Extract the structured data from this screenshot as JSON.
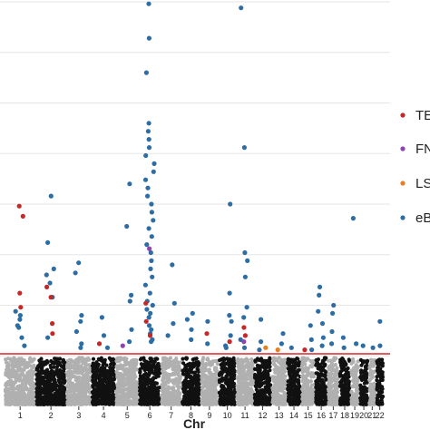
{
  "chart_data": {
    "type": "scatter",
    "title": "",
    "xlabel": "Chr",
    "ylabel": "",
    "ylim": [
      0,
      40
    ],
    "grid": "horizontal",
    "legend_position": "right",
    "categories": [
      "1",
      "2",
      "3",
      "4",
      "5",
      "6",
      "7",
      "8",
      "9",
      "10",
      "11",
      "12",
      "13",
      "14",
      "15",
      "16",
      "17",
      "18",
      "19",
      "20",
      "21",
      "22"
    ],
    "chromosome_lengths_mb": [
      249,
      242,
      198,
      190,
      181,
      171,
      159,
      145,
      138,
      134,
      135,
      133,
      114,
      107,
      102,
      90,
      83,
      80,
      59,
      64,
      47,
      51
    ],
    "threshold": {
      "value": 5.2,
      "color": "#d62728"
    },
    "background_colors": [
      "#b0b0b0",
      "#111111"
    ],
    "series": [
      {
        "name": "TE",
        "color": "#c62828",
        "points": [
          {
            "chr": 1,
            "y": 19.8
          },
          {
            "chr": 1,
            "y": 18.8
          },
          {
            "chr": 1,
            "y": 11.2
          },
          {
            "chr": 1,
            "y": 9.8
          },
          {
            "chr": 2,
            "y": 11.8
          },
          {
            "chr": 2,
            "y": 10.8
          },
          {
            "chr": 2,
            "y": 8.2
          },
          {
            "chr": 2,
            "y": 7.2
          },
          {
            "chr": 4,
            "y": 6.2
          },
          {
            "chr": 6,
            "y": 10.2
          },
          {
            "chr": 6,
            "y": 8.4
          },
          {
            "chr": 6,
            "y": 7.0
          },
          {
            "chr": 9,
            "y": 7.2
          },
          {
            "chr": 10,
            "y": 6.4
          },
          {
            "chr": 11,
            "y": 7.8
          },
          {
            "chr": 11,
            "y": 7.0
          },
          {
            "chr": 15,
            "y": 5.6
          }
        ]
      },
      {
        "name": "FN",
        "color": "#8e44ad",
        "points": [
          {
            "chr": 5,
            "y": 6.0
          },
          {
            "chr": 6,
            "y": 15.6
          },
          {
            "chr": 11,
            "y": 6.4
          }
        ]
      },
      {
        "name": "LS",
        "color": "#e67e22",
        "points": [
          {
            "chr": 12,
            "y": 5.8
          },
          {
            "chr": 13,
            "y": 5.6
          }
        ]
      },
      {
        "name": "eB",
        "color": "#2e6da4",
        "points": [
          {
            "chr": 1,
            "y": 9.4
          },
          {
            "chr": 1,
            "y": 8.6
          },
          {
            "chr": 1,
            "y": 7.8
          },
          {
            "chr": 1,
            "y": 6.8
          },
          {
            "chr": 1,
            "y": 6.0
          },
          {
            "chr": 1,
            "y": 9.0
          },
          {
            "chr": 1,
            "y": 8.0
          },
          {
            "chr": 2,
            "y": 16.2
          },
          {
            "chr": 2,
            "y": 13.6
          },
          {
            "chr": 2,
            "y": 13.0
          },
          {
            "chr": 2,
            "y": 12.2
          },
          {
            "chr": 2,
            "y": 10.8
          },
          {
            "chr": 2,
            "y": 20.8
          },
          {
            "chr": 2,
            "y": 6.8
          },
          {
            "chr": 3,
            "y": 14.2
          },
          {
            "chr": 3,
            "y": 13.2
          },
          {
            "chr": 3,
            "y": 9.0
          },
          {
            "chr": 3,
            "y": 8.4
          },
          {
            "chr": 3,
            "y": 7.4
          },
          {
            "chr": 3,
            "y": 6.2
          },
          {
            "chr": 3,
            "y": 5.8
          },
          {
            "chr": 4,
            "y": 8.8
          },
          {
            "chr": 4,
            "y": 7.0
          },
          {
            "chr": 4,
            "y": 5.8
          },
          {
            "chr": 5,
            "y": 22.0
          },
          {
            "chr": 5,
            "y": 17.8
          },
          {
            "chr": 5,
            "y": 10.4
          },
          {
            "chr": 5,
            "y": 7.6
          },
          {
            "chr": 5,
            "y": 11.0
          },
          {
            "chr": 5,
            "y": 6.4
          },
          {
            "chr": 6,
            "y": 39.8
          },
          {
            "chr": 6,
            "y": 36.4
          },
          {
            "chr": 6,
            "y": 33.0
          },
          {
            "chr": 6,
            "y": 28.0
          },
          {
            "chr": 6,
            "y": 27.2
          },
          {
            "chr": 6,
            "y": 26.4
          },
          {
            "chr": 6,
            "y": 25.6
          },
          {
            "chr": 6,
            "y": 24.8
          },
          {
            "chr": 6,
            "y": 24.0
          },
          {
            "chr": 6,
            "y": 23.2
          },
          {
            "chr": 6,
            "y": 22.4
          },
          {
            "chr": 6,
            "y": 21.6
          },
          {
            "chr": 6,
            "y": 20.8
          },
          {
            "chr": 6,
            "y": 20.0
          },
          {
            "chr": 6,
            "y": 19.2
          },
          {
            "chr": 6,
            "y": 18.4
          },
          {
            "chr": 6,
            "y": 17.6
          },
          {
            "chr": 6,
            "y": 16.8
          },
          {
            "chr": 6,
            "y": 16.0
          },
          {
            "chr": 6,
            "y": 15.2
          },
          {
            "chr": 6,
            "y": 14.4
          },
          {
            "chr": 6,
            "y": 13.6
          },
          {
            "chr": 6,
            "y": 12.8
          },
          {
            "chr": 6,
            "y": 12.0
          },
          {
            "chr": 6,
            "y": 11.2
          },
          {
            "chr": 6,
            "y": 10.4
          },
          {
            "chr": 6,
            "y": 9.6
          },
          {
            "chr": 6,
            "y": 8.8
          },
          {
            "chr": 6,
            "y": 8.0
          },
          {
            "chr": 6,
            "y": 7.2
          },
          {
            "chr": 6,
            "y": 6.4
          },
          {
            "chr": 6,
            "y": 10.0
          },
          {
            "chr": 6,
            "y": 9.2
          },
          {
            "chr": 6,
            "y": 7.6
          },
          {
            "chr": 6,
            "y": 6.6
          },
          {
            "chr": 7,
            "y": 14.0
          },
          {
            "chr": 7,
            "y": 10.2
          },
          {
            "chr": 7,
            "y": 8.2
          },
          {
            "chr": 7,
            "y": 7.0
          },
          {
            "chr": 8,
            "y": 9.2
          },
          {
            "chr": 8,
            "y": 8.6
          },
          {
            "chr": 8,
            "y": 7.6
          },
          {
            "chr": 8,
            "y": 6.6
          },
          {
            "chr": 9,
            "y": 8.4
          },
          {
            "chr": 9,
            "y": 6.2
          },
          {
            "chr": 10,
            "y": 20.0
          },
          {
            "chr": 10,
            "y": 11.2
          },
          {
            "chr": 10,
            "y": 9.0
          },
          {
            "chr": 10,
            "y": 8.4
          },
          {
            "chr": 10,
            "y": 7.0
          },
          {
            "chr": 10,
            "y": 6.0
          },
          {
            "chr": 10,
            "y": 5.8
          },
          {
            "chr": 11,
            "y": 39.4
          },
          {
            "chr": 11,
            "y": 25.6
          },
          {
            "chr": 11,
            "y": 15.2
          },
          {
            "chr": 11,
            "y": 14.4
          },
          {
            "chr": 11,
            "y": 12.8
          },
          {
            "chr": 11,
            "y": 9.8
          },
          {
            "chr": 11,
            "y": 8.8
          },
          {
            "chr": 11,
            "y": 6.6
          },
          {
            "chr": 11,
            "y": 5.8
          },
          {
            "chr": 12,
            "y": 8.6
          },
          {
            "chr": 12,
            "y": 6.4
          },
          {
            "chr": 12,
            "y": 5.6
          },
          {
            "chr": 13,
            "y": 7.2
          },
          {
            "chr": 13,
            "y": 6.2
          },
          {
            "chr": 14,
            "y": 5.8
          },
          {
            "chr": 15,
            "y": 8.0
          },
          {
            "chr": 15,
            "y": 6.6
          },
          {
            "chr": 15,
            "y": 5.6
          },
          {
            "chr": 16,
            "y": 11.8
          },
          {
            "chr": 16,
            "y": 11.0
          },
          {
            "chr": 16,
            "y": 9.4
          },
          {
            "chr": 16,
            "y": 8.2
          },
          {
            "chr": 16,
            "y": 6.8
          },
          {
            "chr": 16,
            "y": 6.0
          },
          {
            "chr": 17,
            "y": 10.0
          },
          {
            "chr": 17,
            "y": 9.2
          },
          {
            "chr": 17,
            "y": 7.4
          },
          {
            "chr": 17,
            "y": 6.2
          },
          {
            "chr": 18,
            "y": 6.8
          },
          {
            "chr": 18,
            "y": 5.8
          },
          {
            "chr": 19,
            "y": 18.6
          },
          {
            "chr": 19,
            "y": 6.2
          },
          {
            "chr": 20,
            "y": 6.0
          },
          {
            "chr": 21,
            "y": 5.8
          },
          {
            "chr": 22,
            "y": 8.4
          },
          {
            "chr": 22,
            "y": 6.0
          }
        ]
      }
    ]
  }
}
